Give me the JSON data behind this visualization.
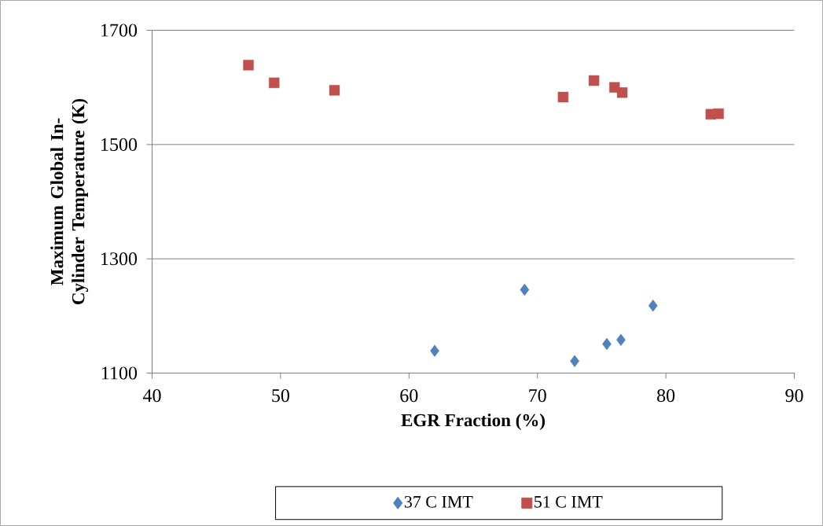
{
  "chart_data": {
    "type": "scatter",
    "xlabel": "EGR Fraction (%)",
    "ylabel": "Maximum Global In-Cylinder Temperature (K)",
    "xlim": [
      40,
      90
    ],
    "xticks": [
      40,
      50,
      60,
      70,
      80,
      90
    ],
    "ylim": [
      1100,
      1700
    ],
    "yticks": [
      1100,
      1300,
      1500,
      1700
    ],
    "grid": "y",
    "legend": "bottom",
    "series": [
      {
        "name": "37 C IMT",
        "color": "#4f81bd",
        "marker": "diamond",
        "x": [
          62.0,
          69.0,
          72.9,
          75.4,
          76.5,
          79.0
        ],
        "values": [
          1139,
          1246,
          1121,
          1151,
          1158,
          1218
        ]
      },
      {
        "name": "51 C IMT",
        "color": "#c0504d",
        "marker": "square",
        "x": [
          47.5,
          49.5,
          54.2,
          72.0,
          74.4,
          76.0,
          76.6,
          83.5,
          84.1
        ],
        "values": [
          1639,
          1608,
          1595,
          1583,
          1612,
          1600,
          1591,
          1553,
          1554
        ]
      }
    ]
  }
}
